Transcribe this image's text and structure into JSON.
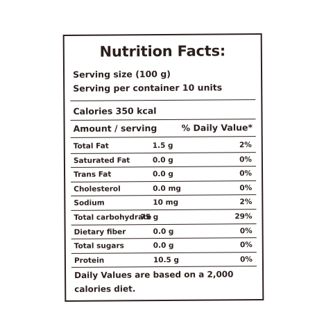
{
  "label": {
    "title": "Nutrition Facts:",
    "serving_size": "Serving size (100 g)",
    "servings_per_container": "Serving per container 10 units",
    "calories": "Calories 350 kcal",
    "amount_header": "Amount / serving",
    "dv_header": "% Daily Value*",
    "rows": [
      {
        "name": "Total Fat",
        "amount": "1.5 g",
        "dv": "2%"
      },
      {
        "name": "Saturated Fat",
        "amount": "0.0 g",
        "dv": "0%"
      },
      {
        "name": "Trans Fat",
        "amount": "0.0 g",
        "dv": "0%"
      },
      {
        "name": "Cholesterol",
        "amount": "0.0 mg",
        "dv": "0%"
      },
      {
        "name": "Sodium",
        "amount": "10 mg",
        "dv": "2%"
      },
      {
        "name": "Total carbohydrate",
        "amount": "75 g",
        "dv": "29%"
      },
      {
        "name": "Dietary fiber",
        "amount": "0.0 g",
        "dv": "0%"
      },
      {
        "name": "Total sugars",
        "amount": "0.0 g",
        "dv": "0%"
      },
      {
        "name": "Protein",
        "amount": "10.5 g",
        "dv": "0%"
      }
    ],
    "footnote": "Daily Values are based on a 2,000 calories diet."
  }
}
